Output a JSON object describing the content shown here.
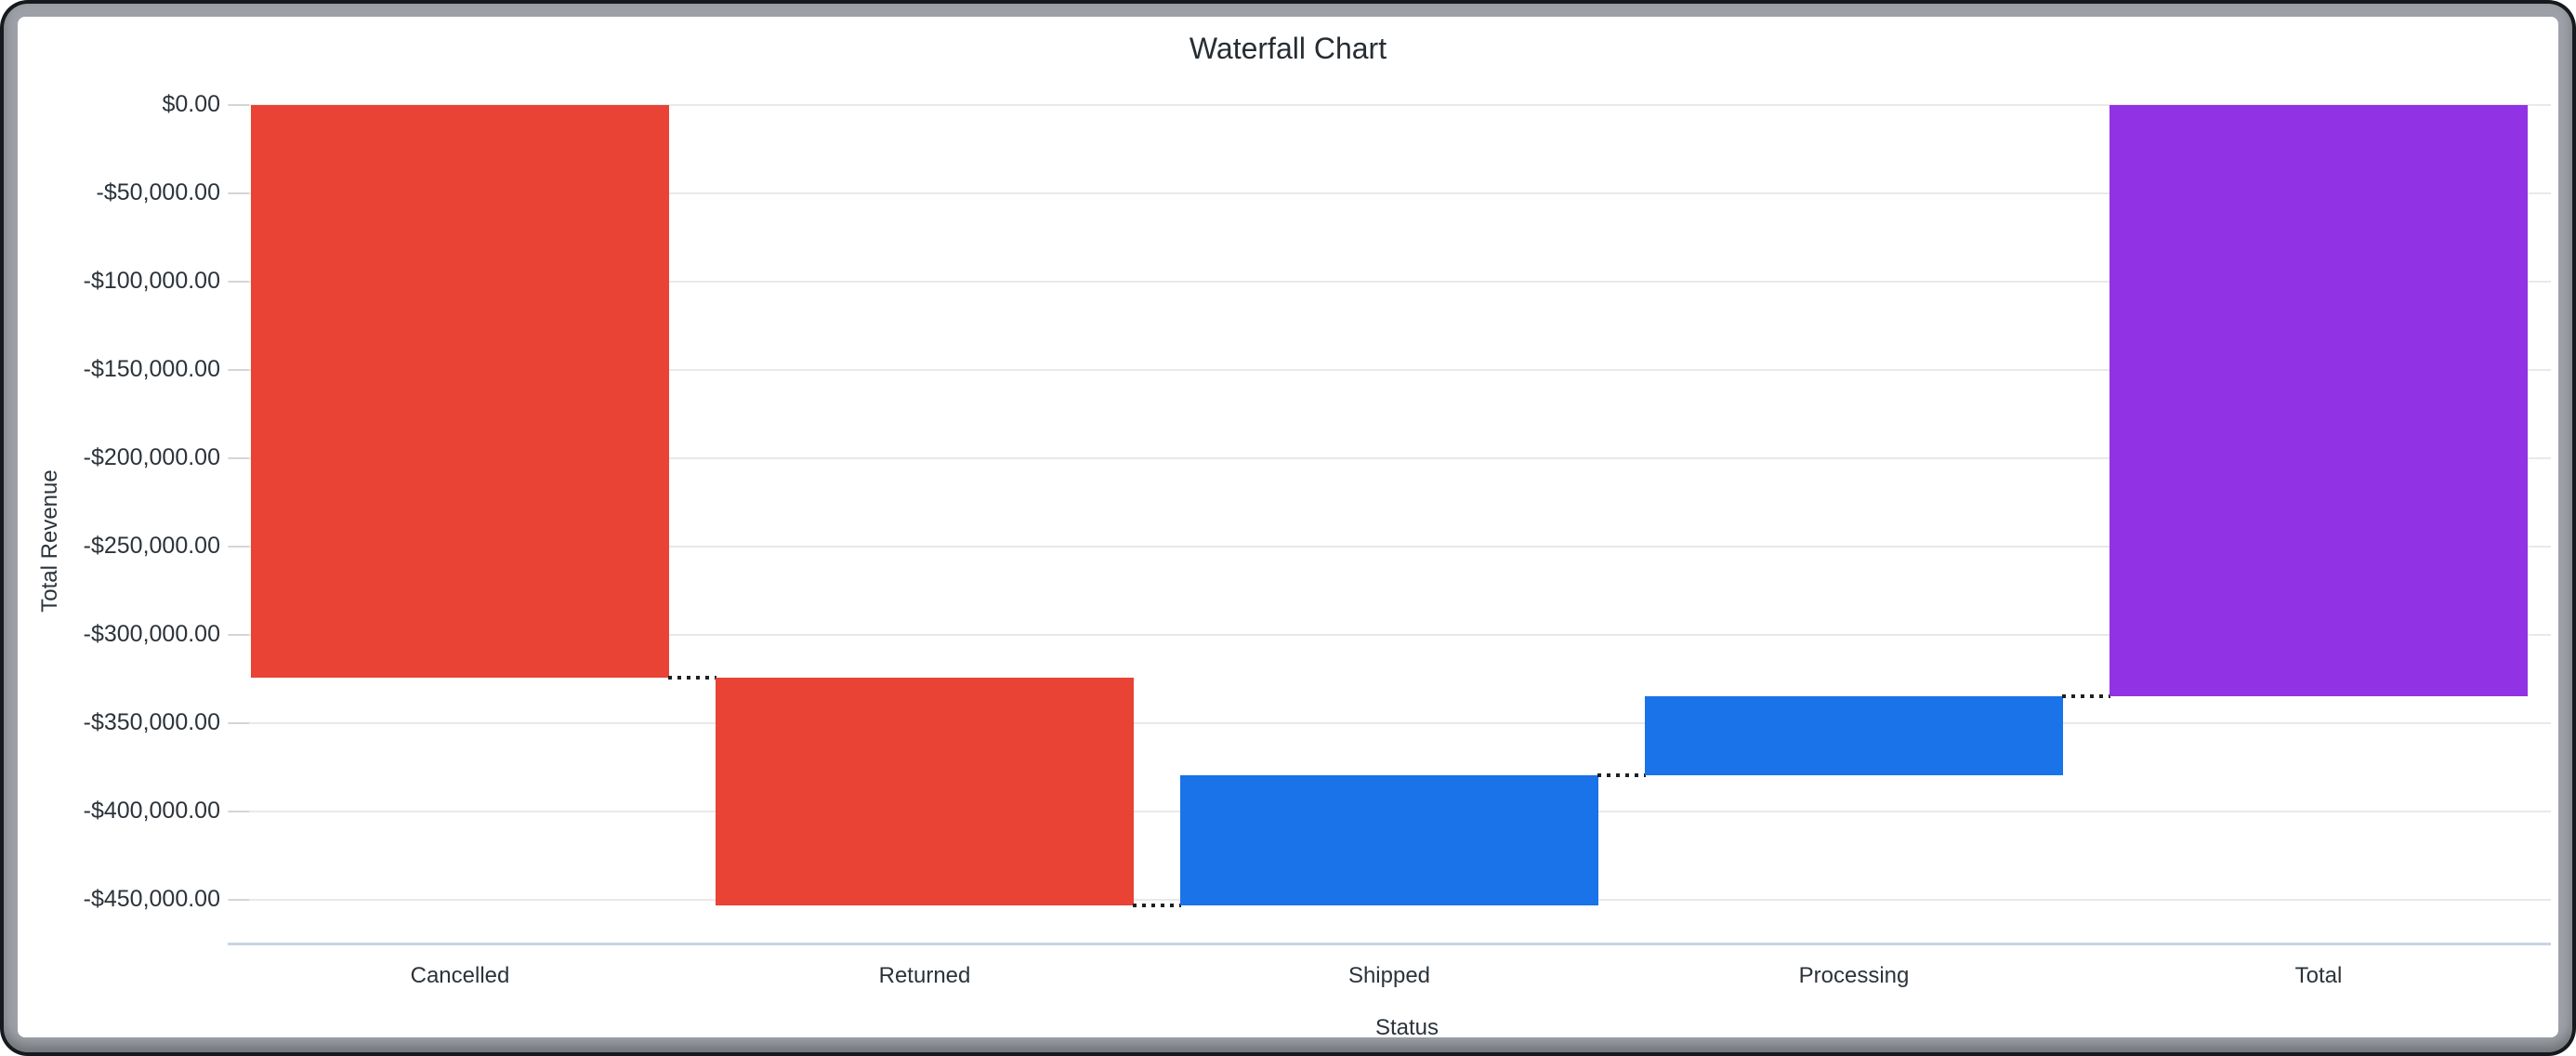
{
  "window": {
    "frame_band_color": "#9da1a7",
    "frame_ring_color": "#16191d",
    "card_color": "#ffffff"
  },
  "chart": {
    "title": "Waterfall Chart",
    "x_axis_title": "Status",
    "y_axis_title": "Total Revenue"
  },
  "chart_data": {
    "type": "bar",
    "subtype": "waterfall",
    "title": "Waterfall Chart",
    "xlabel": "Status",
    "ylabel": "Total Revenue",
    "ylim": [
      -475000,
      0
    ],
    "grid": true,
    "legend": false,
    "categories": [
      "Cancelled",
      "Returned",
      "Shipped",
      "Processing",
      "Total"
    ],
    "values": [
      -324000,
      -129000,
      73500,
      45000,
      -334500
    ],
    "bars": [
      {
        "label": "Cancelled",
        "delta": -324000,
        "start": 0,
        "end": -324000,
        "color": "#e94335"
      },
      {
        "label": "Returned",
        "delta": -129000,
        "start": -324000,
        "end": -453000,
        "color": "#e94335"
      },
      {
        "label": "Shipped",
        "delta": 73500,
        "start": -453000,
        "end": -379500,
        "color": "#1a73e8"
      },
      {
        "label": "Processing",
        "delta": 45000,
        "start": -379500,
        "end": -334500,
        "color": "#1a73e8"
      },
      {
        "label": "Total",
        "delta": -334500,
        "start": 0,
        "end": -334500,
        "color": "#9132e4"
      }
    ],
    "connector_color": "#1d2126",
    "y_ticks": [
      {
        "value": 0,
        "label": "$0.00"
      },
      {
        "value": -50000,
        "label": "-$50,000.00"
      },
      {
        "value": -100000,
        "label": "-$100,000.00"
      },
      {
        "value": -150000,
        "label": "-$150,000.00"
      },
      {
        "value": -200000,
        "label": "-$200,000.00"
      },
      {
        "value": -250000,
        "label": "-$250,000.00"
      },
      {
        "value": -300000,
        "label": "-$300,000.00"
      },
      {
        "value": -350000,
        "label": "-$350,000.00"
      },
      {
        "value": -400000,
        "label": "-$400,000.00"
      },
      {
        "value": -450000,
        "label": "-$450,000.00"
      }
    ],
    "colors": {
      "negative": "#e94335",
      "positive": "#1a73e8",
      "total": "#9132e4"
    }
  }
}
